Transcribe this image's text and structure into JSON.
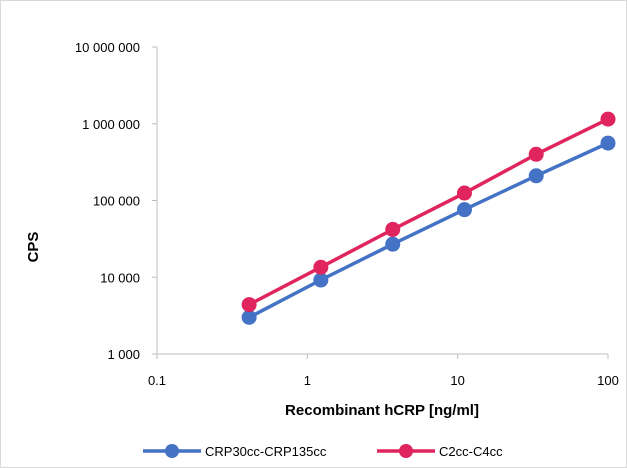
{
  "chart_data": {
    "type": "line",
    "title": "",
    "xlabel": "Recombinant hCRP [ng/ml]",
    "ylabel": "CPS",
    "x_scale": "log",
    "y_scale": "log",
    "xlim": [
      0.1,
      100
    ],
    "ylim": [
      1000,
      10000000
    ],
    "x_ticks": [
      0.1,
      1,
      10,
      100
    ],
    "x_tick_labels": [
      "0.1",
      "1",
      "10",
      "100"
    ],
    "y_ticks": [
      1000,
      10000,
      100000,
      1000000,
      10000000
    ],
    "y_tick_labels": [
      "1 000",
      "10 000",
      "100 000",
      "1 000 000",
      "10 000 000"
    ],
    "grid": false,
    "legend_position": "bottom",
    "x": [
      0.41,
      1.23,
      3.7,
      11.1,
      33.3,
      100
    ],
    "series": [
      {
        "name": "CRP30cc-CRP135cc",
        "color": "#4472c4",
        "values": [
          3000,
          9200,
          27000,
          76000,
          210000,
          560000
        ]
      },
      {
        "name": "C2cc-C4cc",
        "color": "#e0245e",
        "values": [
          4400,
          13500,
          42000,
          125000,
          400000,
          1150000
        ]
      }
    ]
  }
}
